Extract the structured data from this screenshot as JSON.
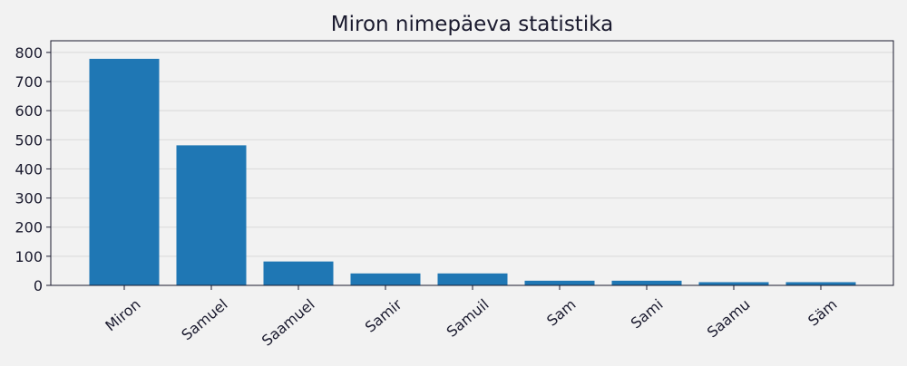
{
  "chart_data": {
    "type": "bar",
    "title": "Miron nimepäeva statistika",
    "xlabel": "",
    "ylabel": "",
    "categories": [
      "Miron",
      "Samuel",
      "Saamuel",
      "Samir",
      "Samuil",
      "Sam",
      "Sami",
      "Saamu",
      "Säm"
    ],
    "values": [
      778,
      481,
      82,
      41,
      41,
      16,
      16,
      11,
      11
    ],
    "ylim": [
      0,
      840
    ],
    "yticks": [
      0,
      100,
      200,
      300,
      400,
      500,
      600,
      700,
      800
    ],
    "grid": "horizontal",
    "colors": {
      "bar": "#1f77b4",
      "background": "#f2f2f2",
      "grid": "#d9d9d9",
      "axis": "#1a1a2e",
      "text": "#1a1a2e"
    }
  }
}
